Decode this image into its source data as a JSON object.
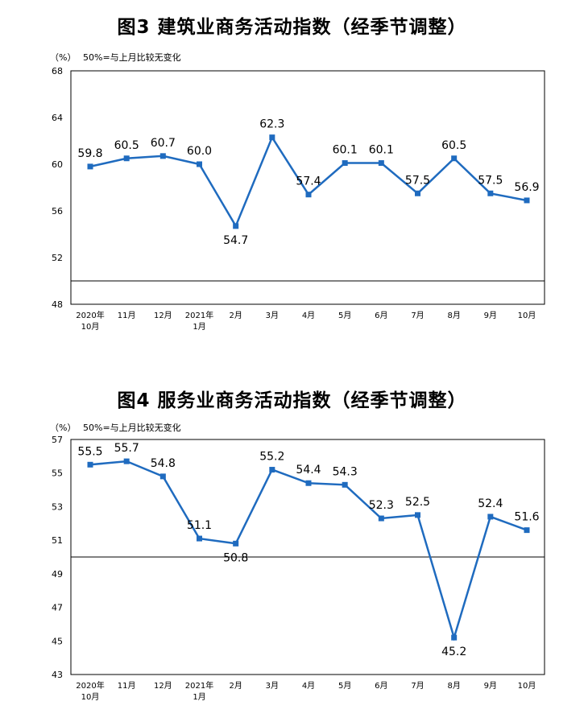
{
  "colors": {
    "line": "#1f6bbf",
    "frame": "#000000"
  },
  "chart_data": [
    {
      "type": "line",
      "title": "图3 建筑业商务活动指数（经季节调整）",
      "unit_note": "（%）",
      "baseline_note": "50%=与上月比较无变化",
      "categories": [
        [
          "2020年",
          "10月"
        ],
        [
          "11月"
        ],
        [
          "12月"
        ],
        [
          "2021年",
          "1月"
        ],
        [
          "2月"
        ],
        [
          "3月"
        ],
        [
          "4月"
        ],
        [
          "5月"
        ],
        [
          "6月"
        ],
        [
          "7月"
        ],
        [
          "8月"
        ],
        [
          "9月"
        ],
        [
          "10月"
        ]
      ],
      "series": [
        {
          "values": [
            59.8,
            60.5,
            60.7,
            60.0,
            54.7,
            62.3,
            57.4,
            60.1,
            60.1,
            57.5,
            60.5,
            57.5,
            56.9
          ]
        }
      ],
      "ylim": [
        48,
        68
      ],
      "yticks": [
        "48",
        "52",
        "56",
        "60",
        "64",
        "68"
      ],
      "reference_line": 50,
      "data_labels": [
        "59.8",
        "60.5",
        "60.7",
        "60.0",
        "54.7",
        "62.3",
        "57.4",
        "60.1",
        "60.1",
        "57.5",
        "60.5",
        "57.5",
        "56.9"
      ],
      "label_below": [
        false,
        false,
        false,
        false,
        true,
        false,
        false,
        false,
        false,
        false,
        false,
        false,
        false
      ],
      "grid": false,
      "legend": "none"
    },
    {
      "type": "line",
      "title": "图4 服务业商务活动指数（经季节调整）",
      "unit_note": "（%）",
      "baseline_note": "50%=与上月比较无变化",
      "categories": [
        [
          "2020年",
          "10月"
        ],
        [
          "11月"
        ],
        [
          "12月"
        ],
        [
          "2021年",
          "1月"
        ],
        [
          "2月"
        ],
        [
          "3月"
        ],
        [
          "4月"
        ],
        [
          "5月"
        ],
        [
          "6月"
        ],
        [
          "7月"
        ],
        [
          "8月"
        ],
        [
          "9月"
        ],
        [
          "10月"
        ]
      ],
      "series": [
        {
          "values": [
            55.5,
            55.7,
            54.8,
            51.1,
            50.8,
            55.2,
            54.4,
            54.3,
            52.3,
            52.5,
            45.2,
            52.4,
            51.6
          ]
        }
      ],
      "ylim": [
        43,
        57
      ],
      "yticks": [
        "43",
        "45",
        "47",
        "49",
        "51",
        "53",
        "55",
        "57"
      ],
      "reference_line": 50,
      "data_labels": [
        "55.5",
        "55.7",
        "54.8",
        "51.1",
        "50.8",
        "55.2",
        "54.4",
        "54.3",
        "52.3",
        "52.5",
        "45.2",
        "52.4",
        "51.6"
      ],
      "label_below": [
        false,
        false,
        false,
        false,
        true,
        false,
        false,
        false,
        false,
        false,
        true,
        false,
        false
      ],
      "grid": false,
      "legend": "none"
    }
  ]
}
